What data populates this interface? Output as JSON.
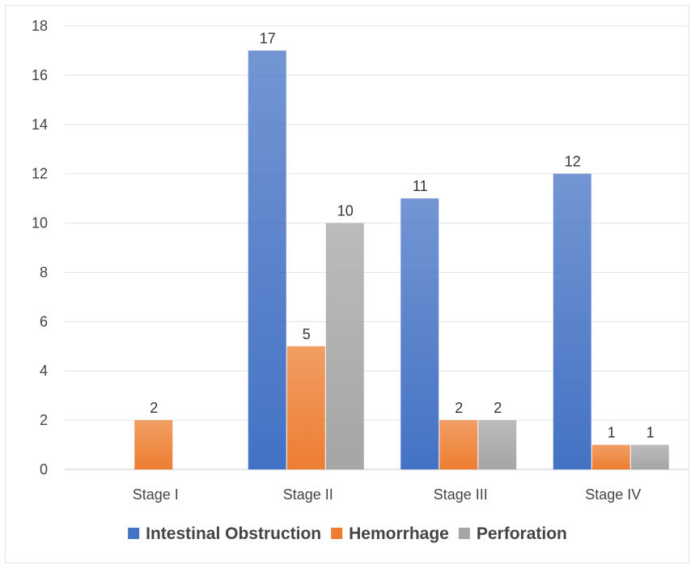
{
  "chart_data": {
    "type": "bar",
    "title": "",
    "xlabel": "",
    "ylabel": "",
    "ylim": [
      0,
      18
    ],
    "yticks": [
      0,
      2,
      4,
      6,
      8,
      10,
      12,
      14,
      16,
      18
    ],
    "grid": true,
    "legend_position": "bottom",
    "categories": [
      "Stage I",
      "Stage II",
      "Stage III",
      "Stage IV"
    ],
    "series": [
      {
        "name": "Intestinal Obstruction",
        "color": "#4472c4",
        "values": [
          0,
          17,
          11,
          12
        ],
        "labels": [
          "",
          "17",
          "11",
          "12"
        ]
      },
      {
        "name": "Hemorrhage",
        "color": "#ed7d31",
        "values": [
          2,
          5,
          2,
          1
        ],
        "labels": [
          "2",
          "5",
          "2",
          "1"
        ]
      },
      {
        "name": "Perforation",
        "color": "#a5a5a5",
        "values": [
          0,
          10,
          2,
          1
        ],
        "labels": [
          "",
          "10",
          "2",
          "1"
        ]
      }
    ]
  }
}
